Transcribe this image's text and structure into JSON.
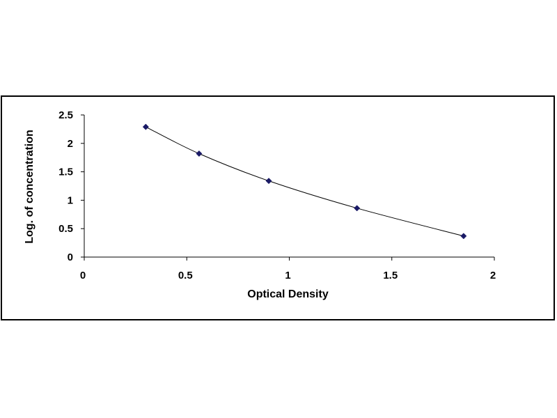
{
  "chart_data": {
    "type": "scatter",
    "title": "",
    "xlabel": "Optical Density",
    "ylabel": "Log. of concentration",
    "xlim": [
      0,
      2
    ],
    "ylim": [
      0,
      2.5
    ],
    "x_ticks": [
      "0",
      "0.5",
      "1",
      "1.5",
      "2"
    ],
    "y_ticks": [
      "0",
      "0.5",
      "1",
      "1.5",
      "2",
      "2.5"
    ],
    "grid": false,
    "legend": "none",
    "series": [
      {
        "x": [
          0.3,
          0.56,
          0.9,
          1.33,
          1.85
        ],
        "y": [
          2.29,
          1.82,
          1.34,
          0.86,
          0.37
        ],
        "marker": "diamond",
        "marker_color": "#1a1a66",
        "line_color": "#000000",
        "line": "smooth"
      }
    ]
  }
}
